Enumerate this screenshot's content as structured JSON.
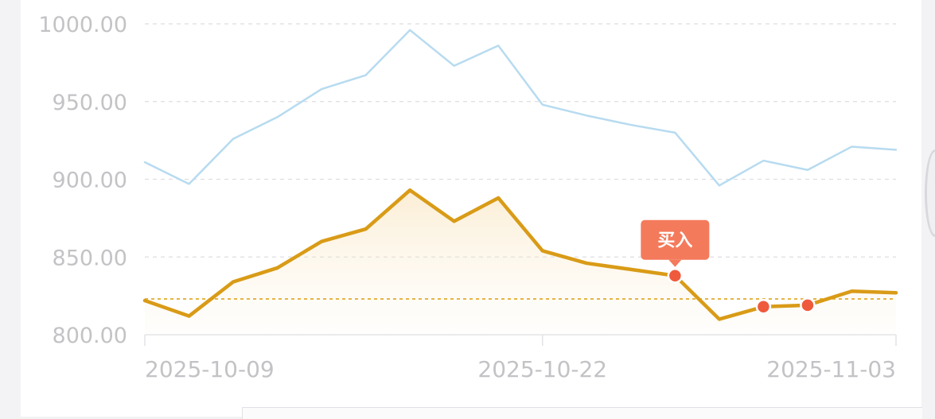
{
  "chart_data": {
    "type": "line",
    "title": "",
    "xlabel": "",
    "ylabel": "",
    "ylim": [
      800,
      1000
    ],
    "y_ticks": [
      "800.00",
      "850.00",
      "900.00",
      "950.00",
      "1000.00"
    ],
    "y_tick_values": [
      800,
      850,
      900,
      950,
      1000
    ],
    "x_tick_labels": [
      "2025-10-09",
      "2025-10-22",
      "2025-11-03"
    ],
    "x_tick_indices": [
      0,
      9,
      17
    ],
    "grid": true,
    "series": [
      {
        "values": [
          911,
          897,
          926,
          940,
          958,
          967,
          996,
          973,
          986,
          948,
          941,
          935,
          930,
          896,
          912,
          906,
          921,
          919
        ],
        "color": "#b7dbf0",
        "style": "thin-line"
      },
      {
        "values": [
          822,
          812,
          834,
          843,
          860,
          868,
          893,
          873,
          888,
          854,
          846,
          842,
          838,
          810,
          818,
          819,
          828,
          827
        ],
        "color": "#d99b17",
        "style": "thick-line-area"
      }
    ],
    "reference_line": {
      "value": 823,
      "color": "#e5b445",
      "style": "dotted"
    },
    "markers": [
      {
        "index": 12,
        "color": "#ef5a3c"
      },
      {
        "index": 14,
        "color": "#ef5a3c"
      },
      {
        "index": 15,
        "color": "#ef5a3c"
      }
    ],
    "annotation": {
      "text": "买入",
      "index": 12,
      "bg_color": "#f47a5c"
    }
  }
}
